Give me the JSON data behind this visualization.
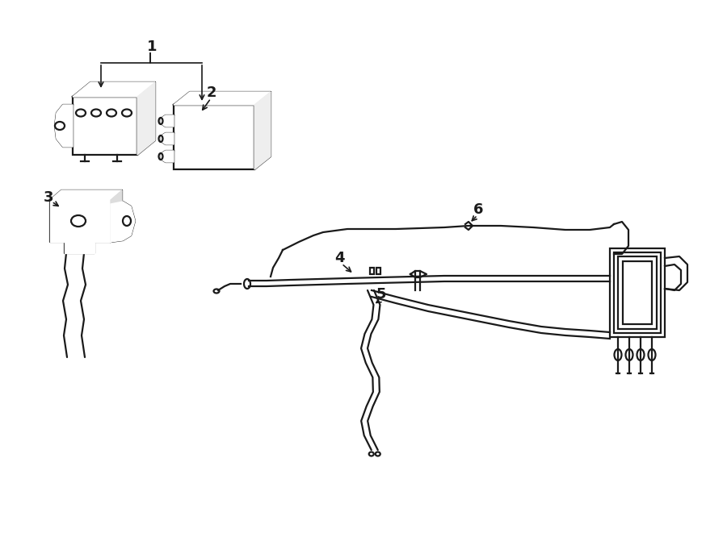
{
  "background_color": "#ffffff",
  "line_color": "#1a1a1a",
  "line_width": 1.6,
  "label_color": "#000000",
  "figsize": [
    9.0,
    6.61
  ],
  "dpi": 100
}
